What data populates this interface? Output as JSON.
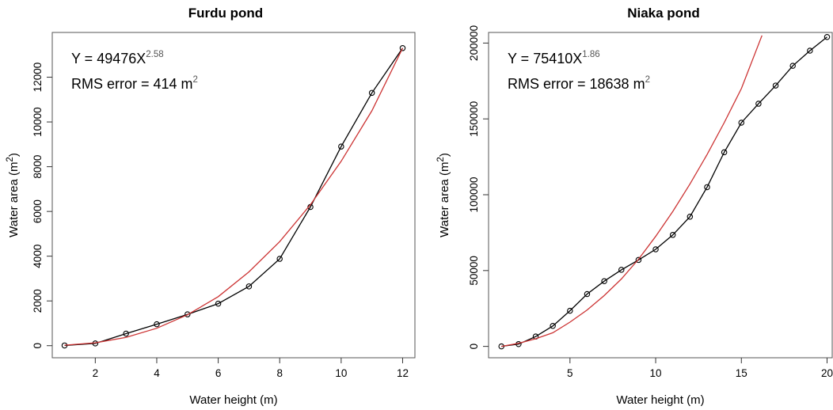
{
  "chart_data": [
    {
      "type": "line",
      "title": "Furdu pond",
      "xlabel": "Water height (m)",
      "ylabel_main": "Water area (m",
      "ylabel_sup": "2",
      "ylabel_tail": ")",
      "xlim": [
        0.6,
        12.4
      ],
      "ylim": [
        -540,
        14000
      ],
      "xticks": [
        2,
        4,
        6,
        8,
        10,
        12
      ],
      "yticks": [
        0,
        2000,
        4000,
        6000,
        8000,
        10000,
        12000
      ],
      "equation": {
        "prefix": "Y = 49476X",
        "exponent": "2.58"
      },
      "rms": {
        "prefix": "RMS error = 414 m",
        "sup": "2"
      },
      "series": [
        {
          "kind": "observed",
          "color": "#000000",
          "x": [
            1,
            2,
            3,
            4,
            5,
            6,
            7,
            8,
            9,
            10,
            11,
            12
          ],
          "y": [
            10,
            100,
            540,
            960,
            1400,
            1880,
            2650,
            3880,
            6200,
            8900,
            11300,
            13300
          ]
        },
        {
          "kind": "fitted",
          "color": "#cc3333",
          "x": [
            1,
            2,
            3,
            4,
            5,
            6,
            7,
            8,
            9,
            10,
            11,
            12
          ],
          "y": [
            22,
            130,
            370,
            780,
            1380,
            2190,
            3300,
            4650,
            6300,
            8240,
            10500,
            13300
          ]
        }
      ]
    },
    {
      "type": "line",
      "title": "Niaka pond",
      "xlabel": "Water height (m)",
      "ylabel_main": "Water area (m",
      "ylabel_sup": "2",
      "ylabel_tail": ")",
      "xlim": [
        0.25,
        20.3
      ],
      "ylim": [
        -7500,
        207000
      ],
      "xticks": [
        5,
        10,
        15,
        20
      ],
      "yticks": [
        0,
        50000,
        100000,
        150000,
        200000
      ],
      "equation": {
        "prefix": "Y = 75410X",
        "exponent": "1.86"
      },
      "rms": {
        "prefix": "RMS error = 18638 m",
        "sup": "2"
      },
      "series": [
        {
          "kind": "observed",
          "color": "#000000",
          "x": [
            1,
            2,
            3,
            4,
            5,
            6,
            7,
            8,
            9,
            10,
            11,
            12,
            13,
            14,
            15,
            16,
            17,
            18,
            19,
            20
          ],
          "y": [
            0,
            1500,
            6500,
            13500,
            23500,
            34500,
            43000,
            50500,
            57000,
            64000,
            73500,
            85500,
            105000,
            128000,
            147500,
            160000,
            172000,
            185000,
            195000,
            204000
          ]
        },
        {
          "kind": "fitted",
          "color": "#cc3333",
          "x": [
            1,
            2,
            3,
            4,
            5,
            6,
            7,
            8,
            9,
            10,
            11,
            12,
            13,
            14,
            15,
            16.2
          ],
          "y": [
            0,
            2000,
            5000,
            9000,
            16000,
            24000,
            33500,
            44500,
            57500,
            72500,
            89000,
            107000,
            126500,
            147500,
            170000,
            205000
          ]
        }
      ]
    }
  ]
}
